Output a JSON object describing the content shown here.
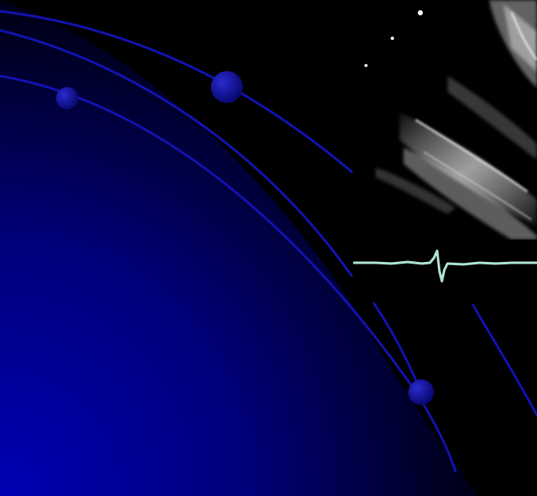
{
  "scene": {
    "description_labels": [],
    "colors": {
      "background": "#000000",
      "gradient_blue": "#0000a0",
      "line_blue": "#1010b0",
      "ecg_trace": "#bfeee0",
      "ultrasound_white": "#e6e6e6"
    },
    "elements": [
      "blue-gradient-arc",
      "orbit-lines",
      "orbit-spheres",
      "ultrasound-image",
      "ecg-trace",
      "star-dots"
    ]
  }
}
